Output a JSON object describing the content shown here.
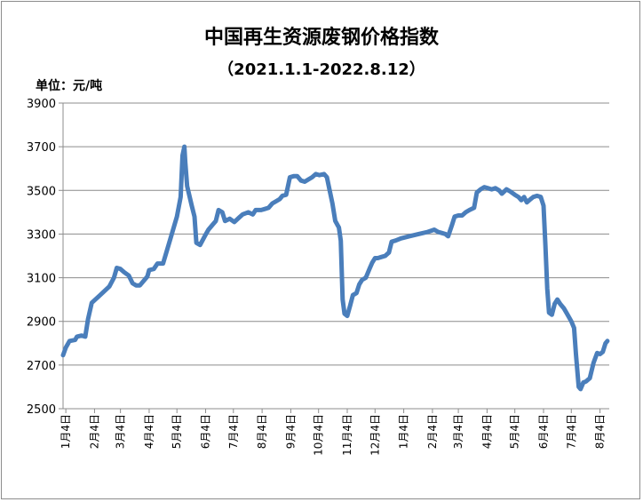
{
  "chart_data": {
    "type": "line",
    "title": "中国再生资源废钢价格指数",
    "subtitle": "（2021.1.1-2022.8.12）",
    "unit_label": "单位：元/吨",
    "ylim": [
      2500,
      3900
    ],
    "yticks": [
      2500,
      2700,
      2900,
      3100,
      3300,
      3500,
      3700,
      3900
    ],
    "grid": true,
    "line_color": "#4a7ebb",
    "xticks": [
      {
        "date": "2021-01-04",
        "label": "1月4日"
      },
      {
        "date": "2021-02-04",
        "label": "2月4日"
      },
      {
        "date": "2021-03-04",
        "label": "3月4日"
      },
      {
        "date": "2021-04-04",
        "label": "4月4日"
      },
      {
        "date": "2021-05-04",
        "label": "5月4日"
      },
      {
        "date": "2021-06-04",
        "label": "6月4日"
      },
      {
        "date": "2021-07-04",
        "label": "7月4日"
      },
      {
        "date": "2021-08-04",
        "label": "8月4日"
      },
      {
        "date": "2021-09-04",
        "label": "9月4日"
      },
      {
        "date": "2021-10-04",
        "label": "10月4日"
      },
      {
        "date": "2021-11-04",
        "label": "11月4日"
      },
      {
        "date": "2021-12-04",
        "label": "12月4日"
      },
      {
        "date": "2022-01-04",
        "label": "1月4日"
      },
      {
        "date": "2022-02-04",
        "label": "2月4日"
      },
      {
        "date": "2022-03-04",
        "label": "3月4日"
      },
      {
        "date": "2022-04-04",
        "label": "4月4日"
      },
      {
        "date": "2022-05-04",
        "label": "5月4日"
      },
      {
        "date": "2022-06-04",
        "label": "6月4日"
      },
      {
        "date": "2022-07-04",
        "label": "7月4日"
      },
      {
        "date": "2022-08-04",
        "label": "8月4日"
      }
    ],
    "series": [
      {
        "points": [
          [
            "2021-01-01",
            2745
          ],
          [
            "2021-01-04",
            2780
          ],
          [
            "2021-01-08",
            2810
          ],
          [
            "2021-01-14",
            2815
          ],
          [
            "2021-01-16",
            2830
          ],
          [
            "2021-01-21",
            2835
          ],
          [
            "2021-01-25",
            2830
          ],
          [
            "2021-01-28",
            2910
          ],
          [
            "2021-02-01",
            2985
          ],
          [
            "2021-02-10",
            3020
          ],
          [
            "2021-02-20",
            3060
          ],
          [
            "2021-02-25",
            3100
          ],
          [
            "2021-02-28",
            3145
          ],
          [
            "2021-03-04",
            3140
          ],
          [
            "2021-03-08",
            3125
          ],
          [
            "2021-03-13",
            3110
          ],
          [
            "2021-03-17",
            3075
          ],
          [
            "2021-03-21",
            3065
          ],
          [
            "2021-03-25",
            3065
          ],
          [
            "2021-03-30",
            3090
          ],
          [
            "2021-04-02",
            3105
          ],
          [
            "2021-04-04",
            3135
          ],
          [
            "2021-04-09",
            3140
          ],
          [
            "2021-04-13",
            3165
          ],
          [
            "2021-04-19",
            3165
          ],
          [
            "2021-04-26",
            3265
          ],
          [
            "2021-05-04",
            3380
          ],
          [
            "2021-05-08",
            3470
          ],
          [
            "2021-05-10",
            3660
          ],
          [
            "2021-05-12",
            3700
          ],
          [
            "2021-05-13",
            3630
          ],
          [
            "2021-05-15",
            3520
          ],
          [
            "2021-05-20",
            3430
          ],
          [
            "2021-05-23",
            3380
          ],
          [
            "2021-05-25",
            3260
          ],
          [
            "2021-05-29",
            3250
          ],
          [
            "2021-06-03",
            3290
          ],
          [
            "2021-06-07",
            3320
          ],
          [
            "2021-06-11",
            3340
          ],
          [
            "2021-06-15",
            3360
          ],
          [
            "2021-06-18",
            3410
          ],
          [
            "2021-06-22",
            3400
          ],
          [
            "2021-06-25",
            3360
          ],
          [
            "2021-06-30",
            3370
          ],
          [
            "2021-07-05",
            3355
          ],
          [
            "2021-07-10",
            3375
          ],
          [
            "2021-07-14",
            3390
          ],
          [
            "2021-07-20",
            3400
          ],
          [
            "2021-07-25",
            3390
          ],
          [
            "2021-07-28",
            3410
          ],
          [
            "2021-08-03",
            3410
          ],
          [
            "2021-08-07",
            3415
          ],
          [
            "2021-08-11",
            3420
          ],
          [
            "2021-08-15",
            3440
          ],
          [
            "2021-08-19",
            3450
          ],
          [
            "2021-08-23",
            3460
          ],
          [
            "2021-08-26",
            3475
          ],
          [
            "2021-08-30",
            3480
          ],
          [
            "2021-09-03",
            3560
          ],
          [
            "2021-09-07",
            3565
          ],
          [
            "2021-09-11",
            3565
          ],
          [
            "2021-09-15",
            3545
          ],
          [
            "2021-09-19",
            3540
          ],
          [
            "2021-09-23",
            3550
          ],
          [
            "2021-09-27",
            3560
          ],
          [
            "2021-10-01",
            3575
          ],
          [
            "2021-10-05",
            3570
          ],
          [
            "2021-10-10",
            3575
          ],
          [
            "2021-10-13",
            3560
          ],
          [
            "2021-10-16",
            3500
          ],
          [
            "2021-10-19",
            3440
          ],
          [
            "2021-10-22",
            3360
          ],
          [
            "2021-10-26",
            3330
          ],
          [
            "2021-10-28",
            3270
          ],
          [
            "2021-10-30",
            3000
          ],
          [
            "2021-11-01",
            2935
          ],
          [
            "2021-11-04",
            2925
          ],
          [
            "2021-11-07",
            2970
          ],
          [
            "2021-11-10",
            3020
          ],
          [
            "2021-11-14",
            3030
          ],
          [
            "2021-11-17",
            3070
          ],
          [
            "2021-11-20",
            3090
          ],
          [
            "2021-11-24",
            3100
          ],
          [
            "2021-11-28",
            3140
          ],
          [
            "2021-12-01",
            3170
          ],
          [
            "2021-12-04",
            3190
          ],
          [
            "2021-12-07",
            3190
          ],
          [
            "2021-12-11",
            3195
          ],
          [
            "2021-12-15",
            3200
          ],
          [
            "2021-12-19",
            3215
          ],
          [
            "2021-12-22",
            3265
          ],
          [
            "2021-12-26",
            3270
          ],
          [
            "2022-01-01",
            3280
          ],
          [
            "2022-01-10",
            3290
          ],
          [
            "2022-01-20",
            3300
          ],
          [
            "2022-01-30",
            3310
          ],
          [
            "2022-02-06",
            3320
          ],
          [
            "2022-02-10",
            3310
          ],
          [
            "2022-02-14",
            3305
          ],
          [
            "2022-02-18",
            3300
          ],
          [
            "2022-02-21",
            3290
          ],
          [
            "2022-02-25",
            3340
          ],
          [
            "2022-02-28",
            3380
          ],
          [
            "2022-03-04",
            3385
          ],
          [
            "2022-03-08",
            3385
          ],
          [
            "2022-03-12",
            3400
          ],
          [
            "2022-03-16",
            3410
          ],
          [
            "2022-03-21",
            3420
          ],
          [
            "2022-03-24",
            3490
          ],
          [
            "2022-03-28",
            3505
          ],
          [
            "2022-04-01",
            3515
          ],
          [
            "2022-04-05",
            3510
          ],
          [
            "2022-04-09",
            3505
          ],
          [
            "2022-04-13",
            3510
          ],
          [
            "2022-04-17",
            3500
          ],
          [
            "2022-04-20",
            3485
          ],
          [
            "2022-04-25",
            3505
          ],
          [
            "2022-04-29",
            3495
          ],
          [
            "2022-05-04",
            3480
          ],
          [
            "2022-05-08",
            3470
          ],
          [
            "2022-05-11",
            3455
          ],
          [
            "2022-05-14",
            3470
          ],
          [
            "2022-05-17",
            3445
          ],
          [
            "2022-05-21",
            3460
          ],
          [
            "2022-05-24",
            3470
          ],
          [
            "2022-05-28",
            3475
          ],
          [
            "2022-06-01",
            3470
          ],
          [
            "2022-06-04",
            3430
          ],
          [
            "2022-06-06",
            3250
          ],
          [
            "2022-06-08",
            3050
          ],
          [
            "2022-06-10",
            2940
          ],
          [
            "2022-06-13",
            2930
          ],
          [
            "2022-06-16",
            2980
          ],
          [
            "2022-06-19",
            3000
          ],
          [
            "2022-06-22",
            2980
          ],
          [
            "2022-06-26",
            2960
          ],
          [
            "2022-06-30",
            2930
          ],
          [
            "2022-07-04",
            2900
          ],
          [
            "2022-07-07",
            2870
          ],
          [
            "2022-07-09",
            2750
          ],
          [
            "2022-07-12",
            2600
          ],
          [
            "2022-07-14",
            2590
          ],
          [
            "2022-07-17",
            2620
          ],
          [
            "2022-07-20",
            2625
          ],
          [
            "2022-07-24",
            2640
          ],
          [
            "2022-07-28",
            2710
          ],
          [
            "2022-08-01",
            2755
          ],
          [
            "2022-08-04",
            2750
          ],
          [
            "2022-08-07",
            2760
          ],
          [
            "2022-08-10",
            2800
          ],
          [
            "2022-08-12",
            2810
          ]
        ]
      }
    ]
  }
}
